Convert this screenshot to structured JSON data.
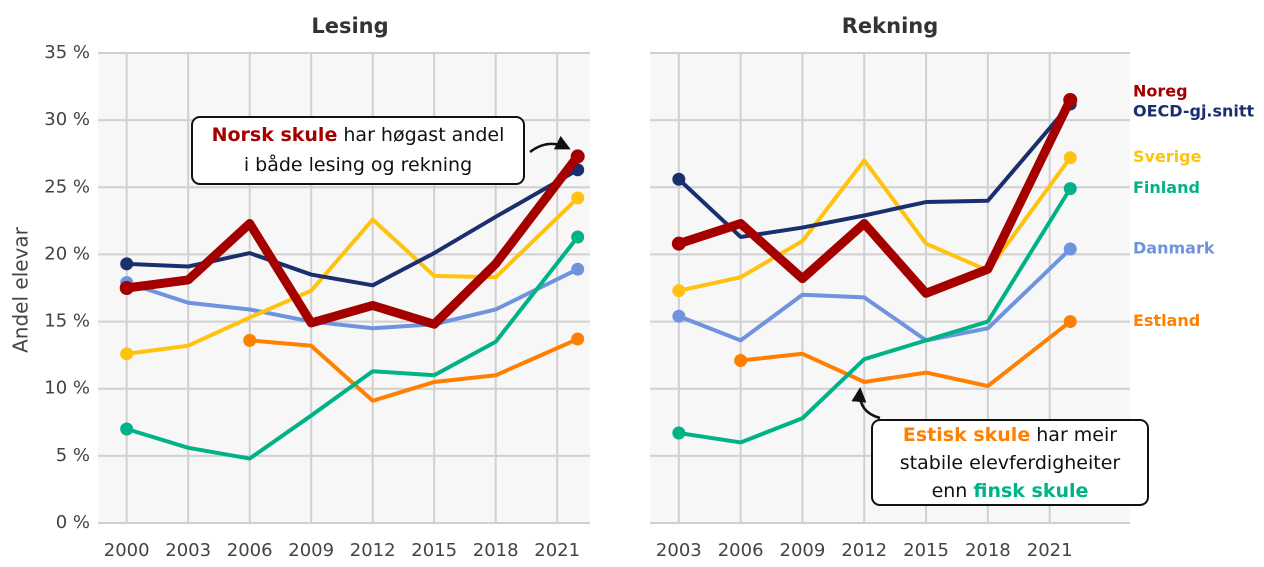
{
  "chart_data": [
    {
      "type": "line",
      "title": "Lesing",
      "y_label": "Andel elevar",
      "x": [
        2000,
        2003,
        2006,
        2009,
        2012,
        2015,
        2018,
        2022
      ],
      "xlim": [
        1998.6,
        2022.6
      ],
      "xticks": [
        2000,
        2003,
        2006,
        2009,
        2012,
        2015,
        2018,
        2021
      ],
      "ylim": [
        0,
        35
      ],
      "yticks": [
        {
          "value": 0,
          "label": "0 %"
        },
        {
          "value": 5,
          "label": "5 %"
        },
        {
          "value": 10,
          "label": "10 %"
        },
        {
          "value": 15,
          "label": "15 %"
        },
        {
          "value": 20,
          "label": "20 %"
        },
        {
          "value": 25,
          "label": "25 %"
        },
        {
          "value": 30,
          "label": "30 %"
        },
        {
          "value": 35,
          "label": "35 %"
        }
      ],
      "grid": true,
      "series": [
        {
          "color": "#a50000",
          "values": [
            17.5,
            18.1,
            22.3,
            14.9,
            16.2,
            14.8,
            19.3,
            27.3
          ]
        },
        {
          "color": "#1b2f6e",
          "values": [
            19.3,
            19.1,
            20.1,
            18.5,
            17.7,
            20.1,
            22.8,
            26.3
          ]
        },
        {
          "color": "#ffc20e",
          "values": [
            12.6,
            13.2,
            15.3,
            17.3,
            22.6,
            18.4,
            18.3,
            24.2
          ]
        },
        {
          "color": "#00b386",
          "values": [
            7.0,
            5.6,
            4.8,
            8.0,
            11.3,
            11.0,
            13.5,
            21.3
          ]
        },
        {
          "color": "#6f93de",
          "values": [
            17.9,
            16.4,
            15.9,
            15.0,
            14.5,
            14.8,
            15.9,
            18.9
          ]
        },
        {
          "color": "#ff8000",
          "values": [
            null,
            null,
            13.6,
            13.2,
            9.1,
            10.5,
            11.0,
            13.7
          ]
        }
      ],
      "annotation": {
        "lines": [
          [
            {
              "text": "Norsk skule",
              "color": "#a50000"
            },
            {
              "text": " har høgast andel"
            }
          ],
          [
            {
              "text": "i både lesing og rekning"
            }
          ]
        ]
      }
    },
    {
      "type": "line",
      "title": "Rekning",
      "x": [
        2003,
        2006,
        2009,
        2012,
        2015,
        2018,
        2022
      ],
      "xlim": [
        2001.6,
        2024.9
      ],
      "xticks": [
        2003,
        2006,
        2009,
        2012,
        2015,
        2018,
        2021
      ],
      "ylim": [
        0,
        35
      ],
      "yticks": [
        0,
        5,
        10,
        15,
        20,
        25,
        30,
        35
      ],
      "grid": true,
      "series": [
        {
          "name": "Noreg",
          "color": "#a50000",
          "values": [
            20.8,
            22.3,
            18.2,
            22.3,
            17.1,
            18.9,
            31.5
          ]
        },
        {
          "name": "OECD-gj.snitt",
          "color": "#1b2f6e",
          "values": [
            25.6,
            21.3,
            22.0,
            22.9,
            23.9,
            24.0,
            31.2
          ]
        },
        {
          "name": "Sverige",
          "color": "#ffc20e",
          "values": [
            17.3,
            18.3,
            21.0,
            27.0,
            20.8,
            18.8,
            27.2
          ]
        },
        {
          "name": "Finland",
          "color": "#00b386",
          "values": [
            6.7,
            6.0,
            7.8,
            12.2,
            13.6,
            15.0,
            24.9
          ]
        },
        {
          "name": "Danmark",
          "color": "#6f93de",
          "values": [
            15.4,
            13.6,
            17.0,
            16.8,
            13.6,
            14.5,
            20.4
          ]
        },
        {
          "name": "Estland",
          "color": "#ff8000",
          "values": [
            null,
            12.1,
            12.6,
            10.5,
            11.2,
            10.2,
            15.0
          ]
        }
      ],
      "annotation": {
        "lines": [
          [
            {
              "text": "Estisk skule",
              "color": "#ff8000"
            },
            {
              "text": " har meir"
            }
          ],
          [
            {
              "text": "stabile elevferdigheiter"
            }
          ],
          [
            {
              "text": "enn "
            },
            {
              "text": "finsk skule",
              "color": "#00b386"
            }
          ]
        ]
      }
    }
  ]
}
